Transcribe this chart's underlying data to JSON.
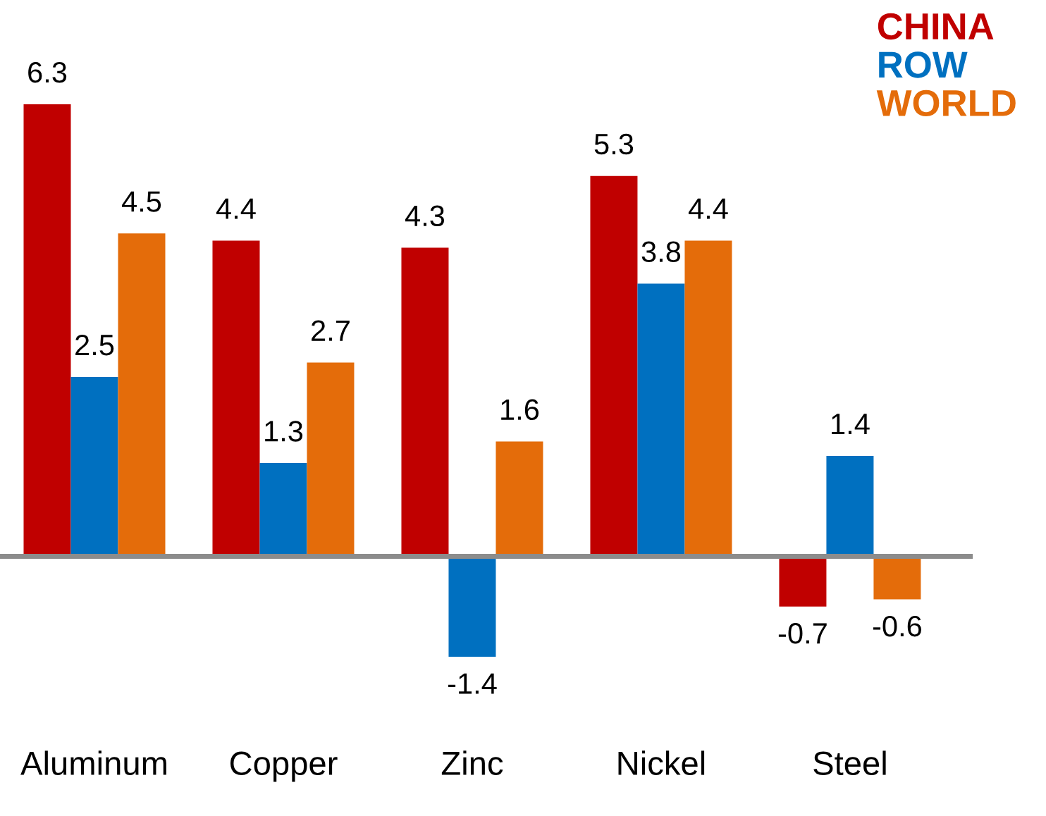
{
  "chart_data": {
    "type": "bar",
    "categories": [
      "Aluminum",
      "Copper",
      "Zinc",
      "Nickel",
      "Steel"
    ],
    "series": [
      {
        "name": "CHINA",
        "color": "#c00000",
        "values": [
          6.3,
          4.4,
          4.3,
          5.3,
          -0.7
        ]
      },
      {
        "name": "ROW",
        "color": "#0070c0",
        "values": [
          2.5,
          1.3,
          -1.4,
          3.8,
          1.4
        ]
      },
      {
        "name": "WORLD",
        "color": "#e46c0a",
        "values": [
          4.5,
          2.7,
          1.6,
          4.4,
          -0.6
        ]
      }
    ],
    "data_labels": true,
    "legend": "top right"
  }
}
